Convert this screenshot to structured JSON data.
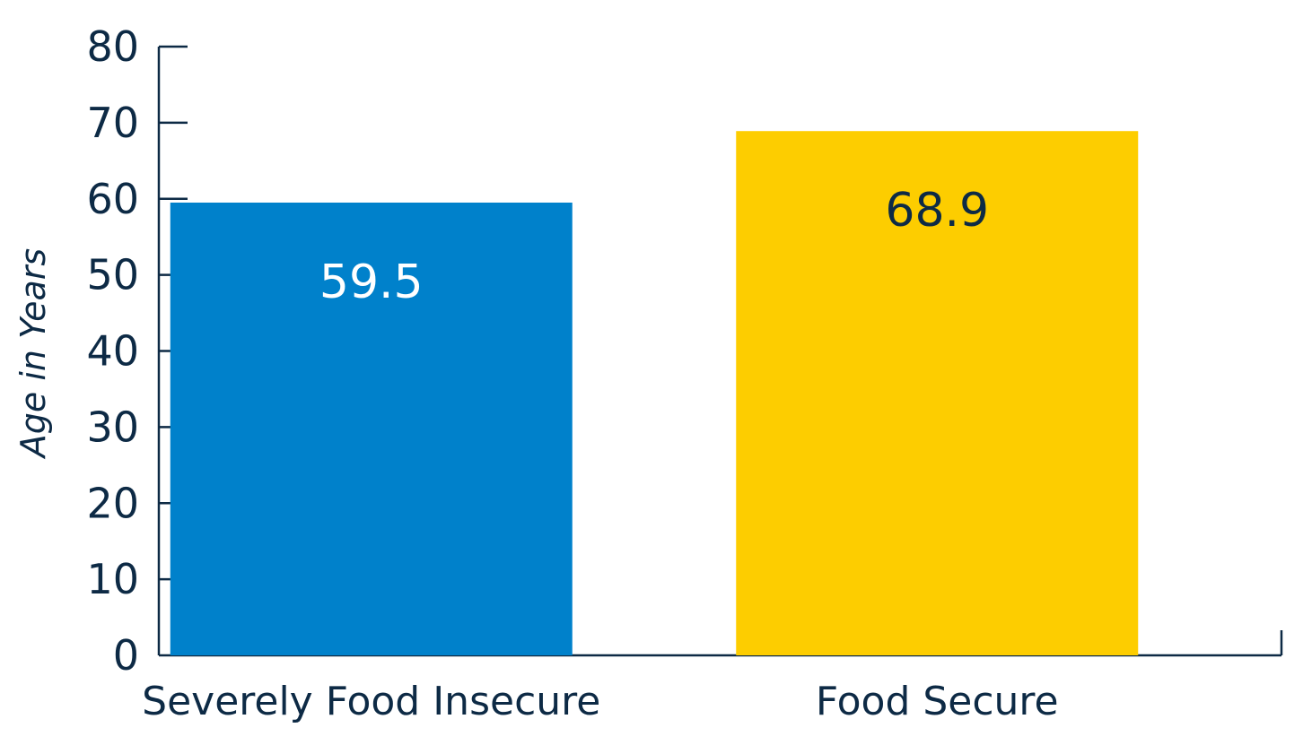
{
  "chart_data": {
    "type": "bar",
    "title": "",
    "xlabel": "",
    "ylabel": "Age in Years",
    "ylim": [
      0,
      80
    ],
    "yticks": [
      0,
      10,
      20,
      30,
      40,
      50,
      60,
      70,
      80
    ],
    "grid": false,
    "legend": "none",
    "categories": [
      "Severely Food Insecure",
      "Food Secure"
    ],
    "values": [
      59.5,
      68.9
    ],
    "value_labels": [
      "59.5",
      "68.9"
    ],
    "colors": [
      "#0081cb",
      "#fdcd00"
    ],
    "label_colors": [
      "#ffffff",
      "#0d2a45"
    ],
    "axis_color": "#0d2a45"
  }
}
